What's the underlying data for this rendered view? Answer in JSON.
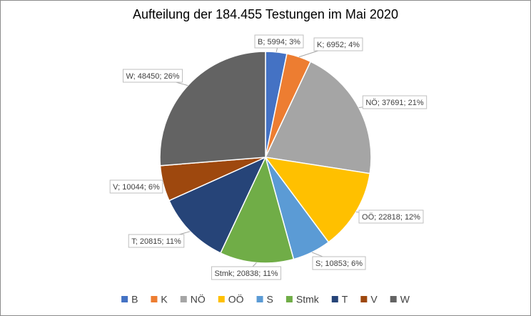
{
  "chart_data": {
    "type": "pie",
    "title": "Aufteilung der 184.455 Testungen im Mai 2020",
    "categories": [
      "B",
      "K",
      "NÖ",
      "OÖ",
      "S",
      "Stmk",
      "T",
      "V",
      "W"
    ],
    "values": [
      5994,
      6952,
      37691,
      22818,
      10853,
      20838,
      20815,
      10044,
      48450
    ],
    "value_labels": [
      "B; 5994; 3%",
      "K; 6952; 4%",
      "NÖ; 37691; 21%",
      "OÖ; 22818; 12%",
      "S; 10853; 6%",
      "Stmk; 20838; 11%",
      "T; 20815; 11%",
      "V; 10044; 6%",
      "W; 48450; 26%"
    ],
    "colors": [
      "#4472c4",
      "#ed7d31",
      "#a5a5a5",
      "#ffc000",
      "#5b9bd5",
      "#70ad47",
      "#264478",
      "#9e480e",
      "#636363"
    ],
    "legend": "bottom"
  }
}
